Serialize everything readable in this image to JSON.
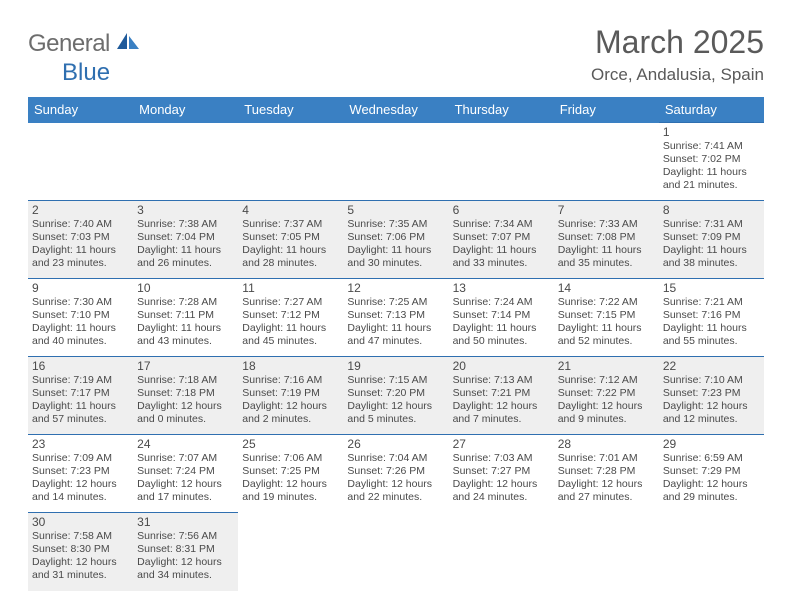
{
  "brand": {
    "text_gray": "General",
    "text_blue": "Blue"
  },
  "title": "March 2025",
  "location": "Orce, Andalusia, Spain",
  "colors": {
    "header_bg": "#3a80c3",
    "border": "#2f6fb0",
    "shade": "#efefef",
    "text": "#4a4a4a",
    "logo_gray": "#6d6d6d",
    "logo_blue": "#2f6fb0"
  },
  "day_headers": [
    "Sunday",
    "Monday",
    "Tuesday",
    "Wednesday",
    "Thursday",
    "Friday",
    "Saturday"
  ],
  "weeks": [
    [
      {
        "empty": true
      },
      {
        "empty": true
      },
      {
        "empty": true
      },
      {
        "empty": true
      },
      {
        "empty": true
      },
      {
        "empty": true
      },
      {
        "n": "1",
        "shade": false,
        "sunrise": "Sunrise: 7:41 AM",
        "sunset": "Sunset: 7:02 PM",
        "day1": "Daylight: 11 hours",
        "day2": "and 21 minutes."
      }
    ],
    [
      {
        "n": "2",
        "shade": true,
        "sunrise": "Sunrise: 7:40 AM",
        "sunset": "Sunset: 7:03 PM",
        "day1": "Daylight: 11 hours",
        "day2": "and 23 minutes."
      },
      {
        "n": "3",
        "shade": true,
        "sunrise": "Sunrise: 7:38 AM",
        "sunset": "Sunset: 7:04 PM",
        "day1": "Daylight: 11 hours",
        "day2": "and 26 minutes."
      },
      {
        "n": "4",
        "shade": true,
        "sunrise": "Sunrise: 7:37 AM",
        "sunset": "Sunset: 7:05 PM",
        "day1": "Daylight: 11 hours",
        "day2": "and 28 minutes."
      },
      {
        "n": "5",
        "shade": true,
        "sunrise": "Sunrise: 7:35 AM",
        "sunset": "Sunset: 7:06 PM",
        "day1": "Daylight: 11 hours",
        "day2": "and 30 minutes."
      },
      {
        "n": "6",
        "shade": true,
        "sunrise": "Sunrise: 7:34 AM",
        "sunset": "Sunset: 7:07 PM",
        "day1": "Daylight: 11 hours",
        "day2": "and 33 minutes."
      },
      {
        "n": "7",
        "shade": true,
        "sunrise": "Sunrise: 7:33 AM",
        "sunset": "Sunset: 7:08 PM",
        "day1": "Daylight: 11 hours",
        "day2": "and 35 minutes."
      },
      {
        "n": "8",
        "shade": true,
        "sunrise": "Sunrise: 7:31 AM",
        "sunset": "Sunset: 7:09 PM",
        "day1": "Daylight: 11 hours",
        "day2": "and 38 minutes."
      }
    ],
    [
      {
        "n": "9",
        "shade": false,
        "sunrise": "Sunrise: 7:30 AM",
        "sunset": "Sunset: 7:10 PM",
        "day1": "Daylight: 11 hours",
        "day2": "and 40 minutes."
      },
      {
        "n": "10",
        "shade": false,
        "sunrise": "Sunrise: 7:28 AM",
        "sunset": "Sunset: 7:11 PM",
        "day1": "Daylight: 11 hours",
        "day2": "and 43 minutes."
      },
      {
        "n": "11",
        "shade": false,
        "sunrise": "Sunrise: 7:27 AM",
        "sunset": "Sunset: 7:12 PM",
        "day1": "Daylight: 11 hours",
        "day2": "and 45 minutes."
      },
      {
        "n": "12",
        "shade": false,
        "sunrise": "Sunrise: 7:25 AM",
        "sunset": "Sunset: 7:13 PM",
        "day1": "Daylight: 11 hours",
        "day2": "and 47 minutes."
      },
      {
        "n": "13",
        "shade": false,
        "sunrise": "Sunrise: 7:24 AM",
        "sunset": "Sunset: 7:14 PM",
        "day1": "Daylight: 11 hours",
        "day2": "and 50 minutes."
      },
      {
        "n": "14",
        "shade": false,
        "sunrise": "Sunrise: 7:22 AM",
        "sunset": "Sunset: 7:15 PM",
        "day1": "Daylight: 11 hours",
        "day2": "and 52 minutes."
      },
      {
        "n": "15",
        "shade": false,
        "sunrise": "Sunrise: 7:21 AM",
        "sunset": "Sunset: 7:16 PM",
        "day1": "Daylight: 11 hours",
        "day2": "and 55 minutes."
      }
    ],
    [
      {
        "n": "16",
        "shade": true,
        "sunrise": "Sunrise: 7:19 AM",
        "sunset": "Sunset: 7:17 PM",
        "day1": "Daylight: 11 hours",
        "day2": "and 57 minutes."
      },
      {
        "n": "17",
        "shade": true,
        "sunrise": "Sunrise: 7:18 AM",
        "sunset": "Sunset: 7:18 PM",
        "day1": "Daylight: 12 hours",
        "day2": "and 0 minutes."
      },
      {
        "n": "18",
        "shade": true,
        "sunrise": "Sunrise: 7:16 AM",
        "sunset": "Sunset: 7:19 PM",
        "day1": "Daylight: 12 hours",
        "day2": "and 2 minutes."
      },
      {
        "n": "19",
        "shade": true,
        "sunrise": "Sunrise: 7:15 AM",
        "sunset": "Sunset: 7:20 PM",
        "day1": "Daylight: 12 hours",
        "day2": "and 5 minutes."
      },
      {
        "n": "20",
        "shade": true,
        "sunrise": "Sunrise: 7:13 AM",
        "sunset": "Sunset: 7:21 PM",
        "day1": "Daylight: 12 hours",
        "day2": "and 7 minutes."
      },
      {
        "n": "21",
        "shade": true,
        "sunrise": "Sunrise: 7:12 AM",
        "sunset": "Sunset: 7:22 PM",
        "day1": "Daylight: 12 hours",
        "day2": "and 9 minutes."
      },
      {
        "n": "22",
        "shade": true,
        "sunrise": "Sunrise: 7:10 AM",
        "sunset": "Sunset: 7:23 PM",
        "day1": "Daylight: 12 hours",
        "day2": "and 12 minutes."
      }
    ],
    [
      {
        "n": "23",
        "shade": false,
        "sunrise": "Sunrise: 7:09 AM",
        "sunset": "Sunset: 7:23 PM",
        "day1": "Daylight: 12 hours",
        "day2": "and 14 minutes."
      },
      {
        "n": "24",
        "shade": false,
        "sunrise": "Sunrise: 7:07 AM",
        "sunset": "Sunset: 7:24 PM",
        "day1": "Daylight: 12 hours",
        "day2": "and 17 minutes."
      },
      {
        "n": "25",
        "shade": false,
        "sunrise": "Sunrise: 7:06 AM",
        "sunset": "Sunset: 7:25 PM",
        "day1": "Daylight: 12 hours",
        "day2": "and 19 minutes."
      },
      {
        "n": "26",
        "shade": false,
        "sunrise": "Sunrise: 7:04 AM",
        "sunset": "Sunset: 7:26 PM",
        "day1": "Daylight: 12 hours",
        "day2": "and 22 minutes."
      },
      {
        "n": "27",
        "shade": false,
        "sunrise": "Sunrise: 7:03 AM",
        "sunset": "Sunset: 7:27 PM",
        "day1": "Daylight: 12 hours",
        "day2": "and 24 minutes."
      },
      {
        "n": "28",
        "shade": false,
        "sunrise": "Sunrise: 7:01 AM",
        "sunset": "Sunset: 7:28 PM",
        "day1": "Daylight: 12 hours",
        "day2": "and 27 minutes."
      },
      {
        "n": "29",
        "shade": false,
        "sunrise": "Sunrise: 6:59 AM",
        "sunset": "Sunset: 7:29 PM",
        "day1": "Daylight: 12 hours",
        "day2": "and 29 minutes."
      }
    ],
    [
      {
        "n": "30",
        "shade": true,
        "sunrise": "Sunrise: 7:58 AM",
        "sunset": "Sunset: 8:30 PM",
        "day1": "Daylight: 12 hours",
        "day2": "and 31 minutes."
      },
      {
        "n": "31",
        "shade": true,
        "sunrise": "Sunrise: 7:56 AM",
        "sunset": "Sunset: 8:31 PM",
        "day1": "Daylight: 12 hours",
        "day2": "and 34 minutes."
      },
      {
        "empty": true
      },
      {
        "empty": true
      },
      {
        "empty": true
      },
      {
        "empty": true
      },
      {
        "empty": true
      }
    ]
  ]
}
